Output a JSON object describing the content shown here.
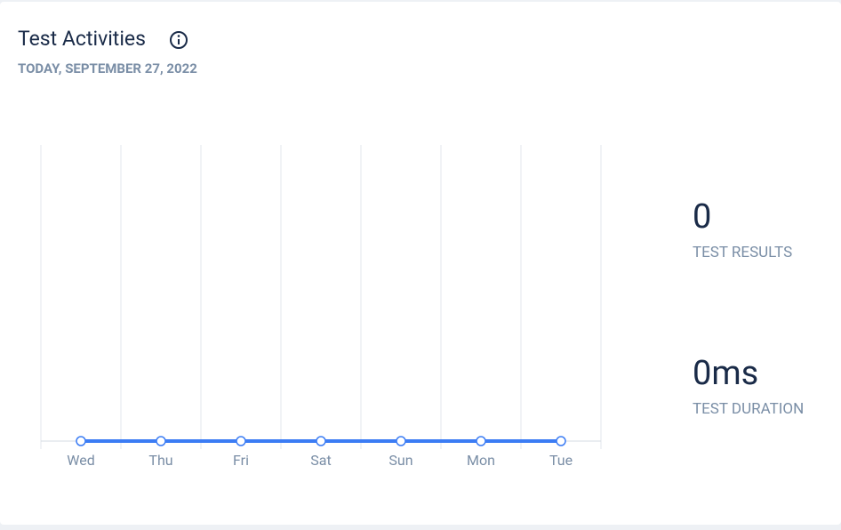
{
  "header": {
    "title": "Test Activities",
    "subtitle": "TODAY, SEPTEMBER 27, 2022"
  },
  "chart_data": {
    "type": "line",
    "categories": [
      "Wed",
      "Thu",
      "Fri",
      "Sat",
      "Sun",
      "Mon",
      "Tue"
    ],
    "series": [
      {
        "color": "#3b7cf4",
        "values": [
          0,
          0,
          0,
          0,
          0,
          0,
          0
        ]
      }
    ],
    "ylim": [
      0,
      1
    ]
  },
  "stats": [
    {
      "value": "0",
      "label": "TEST RESULTS"
    },
    {
      "value": "0ms",
      "label": "TEST DURATION"
    }
  ]
}
